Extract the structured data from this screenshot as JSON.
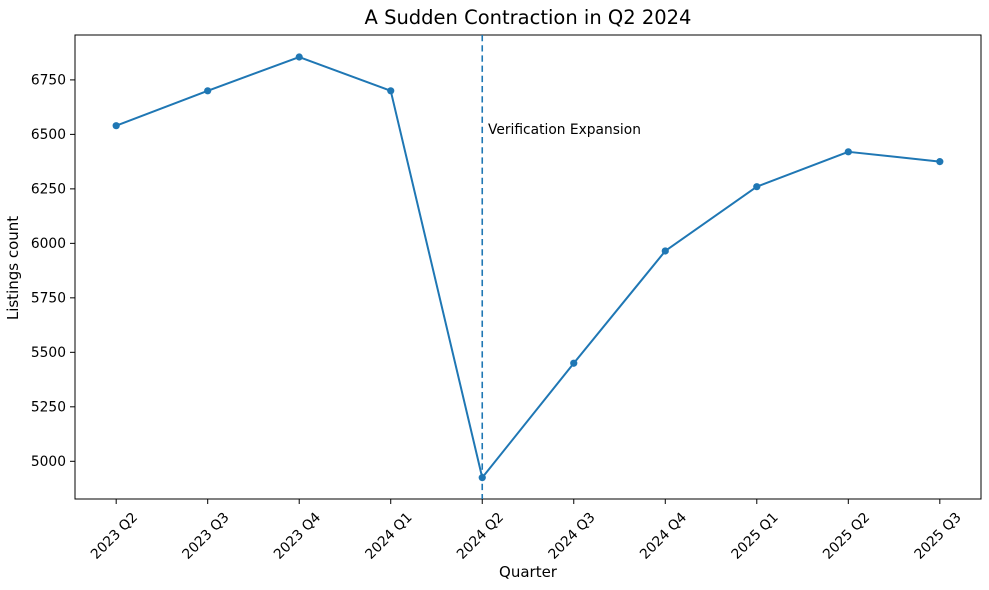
{
  "chart_data": {
    "type": "line",
    "title": "A Sudden Contraction in Q2 2024",
    "xlabel": "Quarter",
    "ylabel": "Listings count",
    "categories": [
      "2023 Q2",
      "2023 Q3",
      "2023 Q4",
      "2024 Q1",
      "2024 Q2",
      "2024 Q3",
      "2024 Q4",
      "2025 Q1",
      "2025 Q2",
      "2025 Q3"
    ],
    "series": [
      {
        "name": "Listings count",
        "values": [
          6540,
          6700,
          6855,
          6700,
          4925,
          5450,
          5965,
          6260,
          6420,
          6375
        ],
        "color": "#1f77b4",
        "marker": "circle"
      }
    ],
    "ylim": [
      4827,
      6956
    ],
    "yticks": [
      5000,
      5250,
      5500,
      5750,
      6000,
      6250,
      6500,
      6750
    ],
    "x_tick_rotation_deg": 45,
    "grid": false,
    "legend": "none",
    "background_color": "#ffffff",
    "axis_color": "#000000",
    "annotation": {
      "text": "Verification Expansion",
      "x_category": "2024 Q2",
      "line_style": "dashed",
      "line_color": "#1f77b4",
      "text_color": "#000000"
    }
  }
}
